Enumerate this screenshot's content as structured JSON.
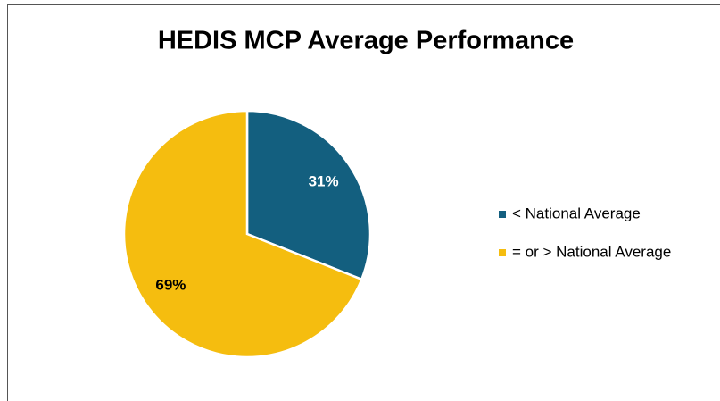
{
  "chart_data": {
    "type": "pie",
    "title": "HEDIS MCP Average Performance",
    "categories": [
      "< National Average",
      "= or > National Average"
    ],
    "values": [
      31,
      69
    ],
    "value_labels": [
      "31%",
      "69%"
    ],
    "colors": [
      "#135f7f",
      "#f5bd0f"
    ],
    "label_colors": [
      "#ffffff",
      "#000000"
    ],
    "legend": "right"
  }
}
